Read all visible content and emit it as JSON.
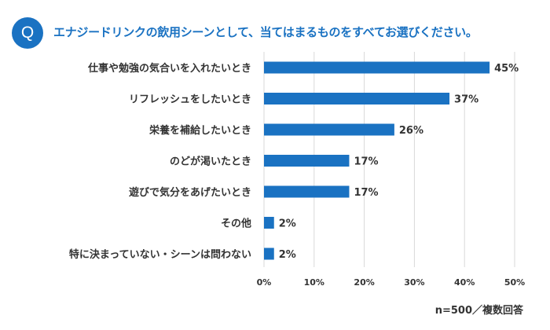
{
  "header": {
    "badge": "Q",
    "question": "エナジードリンクの飲用シーンとして、当てはまるものをすべてお選びください。"
  },
  "footer": {
    "sample_note": "n=500／複数回答"
  },
  "colors": {
    "accent": "#1a72c2",
    "bar": "#1a72c2",
    "grid": "#d9d9d9",
    "text": "#333333"
  },
  "chart_data": {
    "type": "bar",
    "orientation": "horizontal",
    "title": "",
    "xlabel": "",
    "ylabel": "",
    "categories": [
      "仕事や勉強の気合いを入れたいとき",
      "リフレッシュをしたいとき",
      "栄養を補給したいとき",
      "のどが渇いたとき",
      "遊びで気分をあげたいとき",
      "その他",
      "特に決まっていない・シーンは問わない"
    ],
    "values": [
      45,
      37,
      26,
      17,
      17,
      2,
      2
    ],
    "value_labels": [
      "45%",
      "37%",
      "26%",
      "17%",
      "17%",
      "2%",
      "2%"
    ],
    "xlim": [
      0,
      50
    ],
    "ticks": [
      0,
      10,
      20,
      30,
      40,
      50
    ],
    "tick_labels": [
      "0%",
      "10%",
      "20%",
      "30%",
      "40%",
      "50%"
    ],
    "grid": true,
    "legend": "none"
  }
}
